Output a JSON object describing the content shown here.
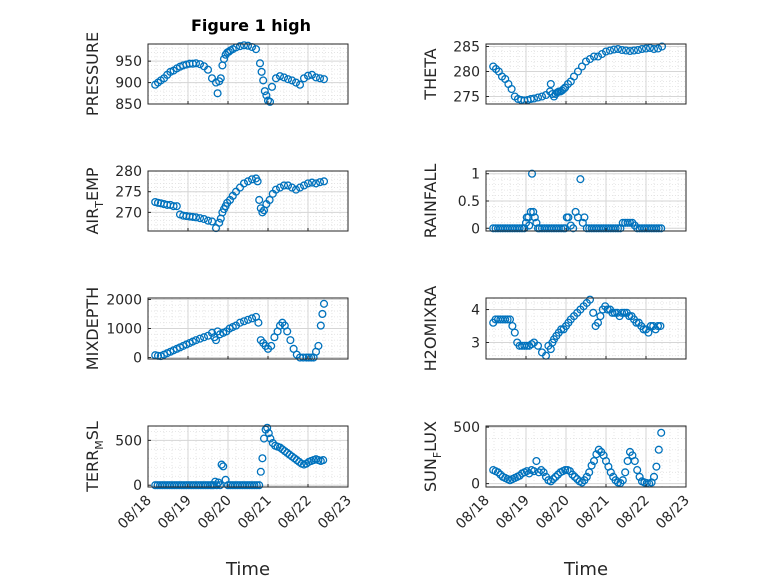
{
  "figure": {
    "title": "Figure 1 high",
    "marker_color": "#0072bd"
  },
  "chart_data": [
    {
      "type": "scatter",
      "panel": "top-left",
      "ylabel": "PRESSURE",
      "ylim": [
        850,
        990
      ],
      "yticks": [
        850,
        900,
        950
      ],
      "xlim": [
        0,
        5
      ],
      "xticks": [
        "08/18",
        "08/19",
        "08/20",
        "08/21",
        "08/22",
        "08/23"
      ],
      "xlabel": "",
      "show_xticklabels": false,
      "grid": true,
      "x": [
        0.18,
        0.25,
        0.32,
        0.4,
        0.48,
        0.56,
        0.64,
        0.72,
        0.8,
        0.88,
        0.96,
        1.04,
        1.12,
        1.2,
        1.3,
        1.4,
        1.5,
        1.6,
        1.7,
        1.74,
        1.78,
        1.82,
        1.86,
        1.9,
        1.94,
        1.98,
        2.02,
        2.06,
        2.12,
        2.2,
        2.3,
        2.4,
        2.5,
        2.6,
        2.7,
        2.8,
        2.84,
        2.88,
        2.92,
        2.96,
        3.0,
        3.05,
        3.1,
        3.2,
        3.3,
        3.4,
        3.5,
        3.6,
        3.7,
        3.8,
        3.9,
        4.0,
        4.1,
        4.2,
        4.3,
        4.4
      ],
      "y": [
        895,
        900,
        905,
        910,
        918,
        925,
        928,
        933,
        937,
        940,
        942,
        944,
        944,
        945,
        943,
        938,
        930,
        910,
        900,
        875,
        903,
        910,
        940,
        955,
        965,
        970,
        972,
        975,
        978,
        982,
        985,
        987,
        986,
        983,
        978,
        945,
        925,
        905,
        880,
        870,
        858,
        855,
        890,
        910,
        915,
        912,
        908,
        905,
        900,
        895,
        910,
        916,
        918,
        912,
        910,
        908
      ]
    },
    {
      "type": "scatter",
      "panel": "top-right",
      "ylabel": "THETA",
      "ylim": [
        273.5,
        285.5
      ],
      "yticks": [
        275,
        280,
        285
      ],
      "xlim": [
        0,
        5
      ],
      "xticks": [
        "08/18",
        "08/19",
        "08/20",
        "08/21",
        "08/22",
        "08/23"
      ],
      "xlabel": "",
      "show_xticklabels": false,
      "grid": true,
      "x": [
        0.18,
        0.25,
        0.32,
        0.4,
        0.48,
        0.56,
        0.64,
        0.72,
        0.8,
        0.88,
        0.96,
        1.04,
        1.12,
        1.2,
        1.3,
        1.4,
        1.5,
        1.6,
        1.62,
        1.66,
        1.7,
        1.74,
        1.78,
        1.82,
        1.86,
        1.9,
        1.94,
        1.98,
        2.05,
        2.12,
        2.2,
        2.3,
        2.4,
        2.5,
        2.6,
        2.7,
        2.8,
        2.9,
        3.0,
        3.1,
        3.2,
        3.3,
        3.4,
        3.5,
        3.6,
        3.7,
        3.8,
        3.9,
        4.0,
        4.1,
        4.2,
        4.3,
        4.4
      ],
      "y": [
        281,
        280.5,
        280,
        279,
        278.5,
        277.5,
        276.5,
        275,
        274.5,
        274.3,
        274.2,
        274.3,
        274.5,
        274.6,
        274.8,
        275,
        275.3,
        276,
        277.5,
        275.5,
        275,
        275.5,
        275.8,
        276,
        276,
        276.2,
        276.5,
        276.8,
        277.5,
        278,
        279,
        280,
        281,
        282,
        282.5,
        283,
        283,
        283.5,
        284,
        284.2,
        284.4,
        284.5,
        284.3,
        284.2,
        284.1,
        284.2,
        284.3,
        284.5,
        284.6,
        284.7,
        284.5,
        284.6,
        285
      ]
    },
    {
      "type": "scatter",
      "panel": "row2-left",
      "ylabel": "AIR_TEMP",
      "ylim": [
        265.5,
        280
      ],
      "yticks": [
        270,
        275,
        280
      ],
      "xlim": [
        0,
        5
      ],
      "xticks": [
        "08/18",
        "08/19",
        "08/20",
        "08/21",
        "08/22",
        "08/23"
      ],
      "xlabel": "",
      "show_xticklabels": false,
      "grid": true,
      "x": [
        0.18,
        0.25,
        0.32,
        0.4,
        0.48,
        0.56,
        0.64,
        0.72,
        0.8,
        0.88,
        0.96,
        1.04,
        1.12,
        1.2,
        1.3,
        1.4,
        1.5,
        1.6,
        1.7,
        1.78,
        1.82,
        1.86,
        1.9,
        1.94,
        1.98,
        2.05,
        2.12,
        2.2,
        2.3,
        2.4,
        2.5,
        2.6,
        2.7,
        2.74,
        2.78,
        2.82,
        2.86,
        2.9,
        2.96,
        3.04,
        3.12,
        3.2,
        3.3,
        3.4,
        3.5,
        3.6,
        3.7,
        3.8,
        3.9,
        4.0,
        4.1,
        4.2,
        4.3,
        4.4
      ],
      "y": [
        272.5,
        272.3,
        272.2,
        272,
        271.8,
        271.8,
        271.5,
        271.5,
        269.5,
        269.2,
        269.1,
        269,
        268.9,
        268.8,
        268.6,
        268.4,
        268,
        267.8,
        266.2,
        267.5,
        268.5,
        270,
        270.8,
        271.5,
        272.3,
        273,
        274,
        275,
        276,
        277,
        277.5,
        278,
        278.2,
        277.5,
        273,
        271,
        270,
        270.5,
        272,
        273,
        274.5,
        275.5,
        276,
        276.5,
        276.5,
        276,
        275.5,
        276,
        276.5,
        277,
        277.2,
        277,
        277.3,
        277.5
      ]
    },
    {
      "type": "scatter",
      "panel": "row2-right",
      "ylabel": "RAINFALL",
      "ylim": [
        -0.05,
        1.05
      ],
      "yticks": [
        0,
        0.5,
        1
      ],
      "xlim": [
        0,
        5
      ],
      "xticks": [
        "08/18",
        "08/19",
        "08/20",
        "08/21",
        "08/22",
        "08/23"
      ],
      "xlabel": "",
      "show_xticklabels": false,
      "grid": true,
      "x": [
        0.18,
        0.24,
        0.3,
        0.36,
        0.42,
        0.48,
        0.54,
        0.6,
        0.66,
        0.72,
        0.78,
        0.84,
        0.9,
        0.96,
        1.0,
        1.02,
        1.06,
        1.08,
        1.12,
        1.15,
        1.18,
        1.22,
        1.26,
        1.3,
        1.34,
        1.4,
        1.46,
        1.52,
        1.58,
        1.64,
        1.7,
        1.76,
        1.82,
        1.88,
        1.94,
        1.98,
        2.02,
        2.06,
        2.12,
        2.18,
        2.24,
        2.3,
        2.36,
        2.42,
        2.46,
        2.52,
        2.58,
        2.64,
        2.7,
        2.76,
        2.82,
        2.88,
        2.94,
        3.0,
        3.06,
        3.12,
        3.18,
        3.24,
        3.3,
        3.36,
        3.42,
        3.48,
        3.54,
        3.6,
        3.66,
        3.72,
        3.78,
        3.84,
        3.9,
        3.96,
        4.02,
        4.08,
        4.14,
        4.2,
        4.26,
        4.32,
        4.38
      ],
      "y": [
        0,
        0,
        0,
        0,
        0,
        0,
        0,
        0,
        0,
        0,
        0,
        0,
        0,
        0,
        0.1,
        0.2,
        0.2,
        0.05,
        0.3,
        1.0,
        0.3,
        0.2,
        0.1,
        0,
        0,
        0,
        0,
        0,
        0,
        0,
        0,
        0,
        0,
        0,
        0,
        0,
        0.2,
        0.2,
        0.05,
        0,
        0.3,
        0.2,
        0.9,
        0.1,
        0.2,
        0,
        0,
        0,
        0,
        0,
        0,
        0,
        0,
        0,
        0,
        0,
        0,
        0,
        0,
        0,
        0.1,
        0.1,
        0.1,
        0.1,
        0.1,
        0.05,
        0,
        0,
        0,
        0,
        0,
        0,
        0,
        0,
        0,
        0,
        0
      ]
    },
    {
      "type": "scatter",
      "panel": "row3-left",
      "ylabel": "MIXDEPTH",
      "ylim": [
        -50,
        2050
      ],
      "yticks": [
        0,
        1000,
        2000
      ],
      "xlim": [
        0,
        5
      ],
      "xticks": [
        "08/18",
        "08/19",
        "08/20",
        "08/21",
        "08/22",
        "08/23"
      ],
      "xlabel": "",
      "show_xticklabels": false,
      "grid": true,
      "x": [
        0.18,
        0.25,
        0.32,
        0.4,
        0.48,
        0.56,
        0.64,
        0.72,
        0.8,
        0.88,
        0.96,
        1.04,
        1.12,
        1.2,
        1.3,
        1.4,
        1.5,
        1.6,
        1.66,
        1.7,
        1.74,
        1.8,
        1.88,
        1.96,
        2.04,
        2.12,
        2.2,
        2.3,
        2.4,
        2.5,
        2.6,
        2.7,
        2.76,
        2.82,
        2.88,
        2.94,
        3.0,
        3.08,
        3.16,
        3.24,
        3.3,
        3.36,
        3.42,
        3.48,
        3.56,
        3.64,
        3.72,
        3.8,
        3.88,
        3.96,
        4.02,
        4.08,
        4.14,
        4.2,
        4.26,
        4.32,
        4.36,
        4.4
      ],
      "y": [
        80,
        60,
        50,
        100,
        150,
        200,
        250,
        300,
        350,
        400,
        450,
        500,
        550,
        600,
        650,
        700,
        750,
        850,
        700,
        600,
        900,
        800,
        850,
        900,
        1000,
        1050,
        1100,
        1200,
        1250,
        1300,
        1350,
        1400,
        1200,
        600,
        500,
        400,
        300,
        400,
        700,
        900,
        1100,
        1200,
        1100,
        900,
        600,
        300,
        100,
        0,
        0,
        0,
        0,
        0,
        0,
        200,
        400,
        1100,
        1500,
        1850
      ]
    },
    {
      "type": "scatter",
      "panel": "row3-right",
      "ylabel": "H2OMIXRA",
      "ylim": [
        2.5,
        4.35
      ],
      "yticks": [
        3,
        4
      ],
      "xlim": [
        0,
        5
      ],
      "xticks": [
        "08/18",
        "08/19",
        "08/20",
        "08/21",
        "08/22",
        "08/23"
      ],
      "xlabel": "",
      "show_xticklabels": false,
      "grid": true,
      "x": [
        0.18,
        0.24,
        0.3,
        0.36,
        0.42,
        0.48,
        0.54,
        0.6,
        0.66,
        0.72,
        0.78,
        0.84,
        0.9,
        0.96,
        1.02,
        1.08,
        1.14,
        1.2,
        1.3,
        1.4,
        1.5,
        1.56,
        1.62,
        1.66,
        1.7,
        1.76,
        1.82,
        1.88,
        1.94,
        2.0,
        2.06,
        2.12,
        2.2,
        2.28,
        2.36,
        2.44,
        2.52,
        2.6,
        2.68,
        2.74,
        2.8,
        2.86,
        2.92,
        2.98,
        3.04,
        3.1,
        3.16,
        3.22,
        3.28,
        3.34,
        3.4,
        3.46,
        3.52,
        3.58,
        3.64,
        3.7,
        3.76,
        3.82,
        3.88,
        3.94,
        4.0,
        4.06,
        4.12,
        4.18,
        4.24,
        4.3,
        4.36
      ],
      "y": [
        3.6,
        3.7,
        3.7,
        3.7,
        3.7,
        3.7,
        3.7,
        3.7,
        3.5,
        3.3,
        3.0,
        2.9,
        2.9,
        2.9,
        2.9,
        2.9,
        2.95,
        3.0,
        2.9,
        2.7,
        2.6,
        2.9,
        2.8,
        3.0,
        3.1,
        3.2,
        3.3,
        3.4,
        3.4,
        3.5,
        3.6,
        3.7,
        3.8,
        3.9,
        4.0,
        4.1,
        4.2,
        4.3,
        3.9,
        3.5,
        3.6,
        3.8,
        4.0,
        4.1,
        4.0,
        4.0,
        3.9,
        3.9,
        3.9,
        3.8,
        3.9,
        3.9,
        3.9,
        3.8,
        3.8,
        3.7,
        3.6,
        3.6,
        3.5,
        3.4,
        3.4,
        3.3,
        3.5,
        3.5,
        3.4,
        3.5,
        3.5
      ]
    },
    {
      "type": "scatter",
      "panel": "bottom-left",
      "ylabel": "TERR_MSL",
      "ylim": [
        -20,
        660
      ],
      "yticks": [
        0,
        500
      ],
      "xlim": [
        0,
        5
      ],
      "xticks": [
        "08/18",
        "08/19",
        "08/20",
        "08/21",
        "08/22",
        "08/23"
      ],
      "xlabel": "Time",
      "show_xticklabels": true,
      "grid": true,
      "x": [
        0.18,
        0.24,
        0.3,
        0.36,
        0.42,
        0.48,
        0.54,
        0.6,
        0.66,
        0.72,
        0.78,
        0.84,
        0.9,
        0.96,
        1.02,
        1.08,
        1.14,
        1.2,
        1.26,
        1.32,
        1.38,
        1.44,
        1.5,
        1.56,
        1.6,
        1.64,
        1.68,
        1.72,
        1.76,
        1.8,
        1.84,
        1.88,
        1.94,
        2.0,
        2.06,
        2.12,
        2.18,
        2.24,
        2.3,
        2.36,
        2.42,
        2.48,
        2.54,
        2.6,
        2.66,
        2.72,
        2.78,
        2.82,
        2.86,
        2.9,
        2.94,
        2.98,
        3.02,
        3.06,
        3.12,
        3.18,
        3.24,
        3.3,
        3.36,
        3.42,
        3.48,
        3.54,
        3.6,
        3.66,
        3.72,
        3.78,
        3.84,
        3.9,
        3.96,
        4.02,
        4.08,
        4.14,
        4.2,
        4.26,
        4.32,
        4.38
      ],
      "y": [
        0,
        0,
        0,
        0,
        0,
        0,
        0,
        0,
        0,
        0,
        0,
        0,
        0,
        0,
        0,
        0,
        0,
        0,
        0,
        0,
        0,
        0,
        0,
        0,
        0,
        0,
        40,
        0,
        30,
        0,
        230,
        210,
        60,
        0,
        0,
        0,
        0,
        0,
        0,
        0,
        0,
        0,
        0,
        0,
        0,
        0,
        0,
        150,
        300,
        520,
        620,
        640,
        580,
        520,
        470,
        440,
        430,
        420,
        400,
        380,
        360,
        340,
        320,
        300,
        280,
        260,
        240,
        230,
        240,
        260,
        270,
        280,
        290,
        280,
        270,
        280
      ]
    },
    {
      "type": "scatter",
      "panel": "bottom-right",
      "ylabel": "SUN_FLUX",
      "ylim": [
        -30,
        510
      ],
      "yticks": [
        0,
        500
      ],
      "xlim": [
        0,
        5
      ],
      "xticks": [
        "08/18",
        "08/19",
        "08/20",
        "08/21",
        "08/22",
        "08/23"
      ],
      "xlabel": "Time",
      "show_xticklabels": true,
      "grid": true,
      "x": [
        0.18,
        0.24,
        0.3,
        0.36,
        0.42,
        0.48,
        0.54,
        0.6,
        0.66,
        0.72,
        0.78,
        0.84,
        0.9,
        0.96,
        1.02,
        1.08,
        1.14,
        1.2,
        1.26,
        1.32,
        1.38,
        1.44,
        1.5,
        1.56,
        1.62,
        1.68,
        1.74,
        1.8,
        1.86,
        1.92,
        1.98,
        2.04,
        2.1,
        2.16,
        2.22,
        2.28,
        2.34,
        2.4,
        2.46,
        2.52,
        2.58,
        2.64,
        2.7,
        2.76,
        2.82,
        2.88,
        2.94,
        3.0,
        3.06,
        3.12,
        3.18,
        3.24,
        3.3,
        3.36,
        3.42,
        3.48,
        3.54,
        3.6,
        3.66,
        3.72,
        3.78,
        3.84,
        3.9,
        3.96,
        4.02,
        4.08,
        4.14,
        4.2,
        4.26,
        4.32,
        4.38
      ],
      "y": [
        120,
        110,
        100,
        80,
        60,
        50,
        40,
        30,
        40,
        50,
        60,
        70,
        90,
        100,
        110,
        90,
        120,
        110,
        200,
        100,
        120,
        100,
        60,
        30,
        20,
        40,
        60,
        80,
        100,
        110,
        120,
        120,
        110,
        80,
        60,
        40,
        20,
        10,
        30,
        60,
        100,
        160,
        200,
        260,
        300,
        280,
        250,
        200,
        150,
        100,
        60,
        30,
        10,
        5,
        30,
        100,
        200,
        280,
        250,
        200,
        120,
        60,
        20,
        10,
        5,
        0,
        10,
        60,
        150,
        300,
        450
      ]
    }
  ]
}
